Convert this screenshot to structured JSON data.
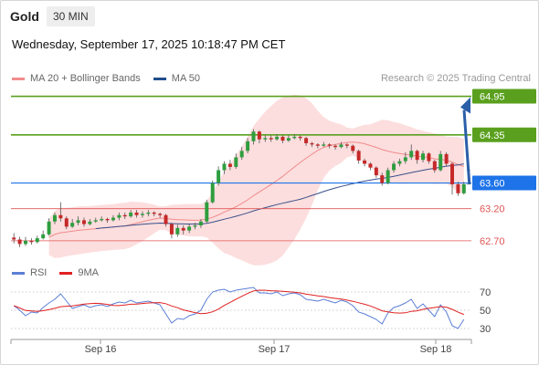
{
  "header": {
    "asset": "Gold",
    "timeframe": "30 MIN"
  },
  "datetime": "Wednesday, September 17, 2025 10:18:47 PM CET",
  "legend": {
    "ma20": {
      "label": "MA 20 + Bollinger Bands",
      "color": "#f28b8b"
    },
    "ma50": {
      "label": "MA 50",
      "color": "#1f4e8c"
    }
  },
  "credit": "Research © 2025 Trading Central",
  "rsi_legend": {
    "rsi": {
      "label": "RSI",
      "color": "#5b7fd6"
    },
    "ma9": {
      "label": "9MA",
      "color": "#e02020"
    }
  },
  "chart_data": {
    "type": "candlestick",
    "levels": [
      {
        "value": 64.95,
        "label": "64.95",
        "kind": "resistance",
        "color": "#5aa01e"
      },
      {
        "value": 64.35,
        "label": "64.35",
        "kind": "resistance",
        "color": "#5aa01e"
      },
      {
        "value": 63.6,
        "label": "63.60",
        "kind": "pivot",
        "color": "#1e73e8"
      },
      {
        "value": 63.2,
        "label": "63.20",
        "kind": "support",
        "color": "#e05555"
      },
      {
        "value": 62.7,
        "label": "62.70",
        "kind": "support",
        "color": "#e05555"
      }
    ],
    "price_range": [
      62.4,
      65.1
    ],
    "x_labels": [
      "Sep 16",
      "Sep 17",
      "Sep 18"
    ],
    "candles": [
      [
        62.75,
        62.72,
        62.82,
        62.66
      ],
      [
        62.72,
        62.65,
        62.76,
        62.6
      ],
      [
        62.65,
        62.7,
        62.76,
        62.62
      ],
      [
        62.7,
        62.68,
        62.74,
        62.64
      ],
      [
        62.68,
        62.74,
        62.78,
        62.66
      ],
      [
        62.74,
        62.8,
        62.86,
        62.72
      ],
      [
        62.8,
        63.0,
        63.05,
        62.78
      ],
      [
        63.0,
        63.1,
        63.14,
        62.96
      ],
      [
        63.1,
        63.05,
        63.3,
        63.0
      ],
      [
        63.05,
        62.92,
        63.08,
        62.88
      ],
      [
        62.92,
        62.98,
        63.04,
        62.9
      ],
      [
        62.98,
        63.02,
        63.08,
        62.94
      ],
      [
        63.02,
        62.96,
        63.06,
        62.92
      ],
      [
        62.96,
        63.0,
        63.04,
        62.94
      ],
      [
        63.0,
        63.02,
        63.06,
        62.98
      ],
      [
        63.02,
        63.04,
        63.08,
        63.0
      ],
      [
        63.04,
        63.02,
        63.06,
        62.98
      ],
      [
        63.02,
        63.06,
        63.1,
        63.0
      ],
      [
        63.06,
        63.1,
        63.14,
        63.02
      ],
      [
        63.1,
        63.08,
        63.14,
        63.04
      ],
      [
        63.08,
        63.14,
        63.18,
        63.06
      ],
      [
        63.14,
        63.1,
        63.18,
        63.06
      ],
      [
        63.1,
        63.12,
        63.16,
        63.06
      ],
      [
        63.12,
        63.14,
        63.18,
        63.08
      ],
      [
        63.14,
        63.12,
        63.16,
        63.08
      ],
      [
        63.12,
        63.1,
        63.14,
        63.06
      ],
      [
        63.1,
        62.96,
        63.12,
        62.92
      ],
      [
        62.96,
        62.8,
        62.98,
        62.74
      ],
      [
        62.8,
        62.9,
        62.95,
        62.76
      ],
      [
        62.9,
        62.86,
        62.94,
        62.8
      ],
      [
        62.86,
        62.92,
        62.96,
        62.82
      ],
      [
        62.92,
        62.94,
        62.98,
        62.88
      ],
      [
        62.94,
        63.0,
        63.04,
        62.9
      ],
      [
        63.0,
        63.3,
        63.34,
        62.98
      ],
      [
        63.3,
        63.6,
        63.64,
        63.28
      ],
      [
        63.6,
        63.8,
        63.86,
        63.56
      ],
      [
        63.8,
        63.9,
        63.94,
        63.74
      ],
      [
        63.9,
        63.85,
        63.96,
        63.8
      ],
      [
        63.85,
        64.0,
        64.06,
        63.82
      ],
      [
        64.0,
        64.1,
        64.16,
        63.96
      ],
      [
        64.1,
        64.25,
        64.3,
        64.06
      ],
      [
        64.25,
        64.4,
        64.44,
        64.2
      ],
      [
        64.4,
        64.28,
        64.42,
        64.22
      ],
      [
        64.28,
        64.3,
        64.34,
        64.24
      ],
      [
        64.3,
        64.28,
        64.34,
        64.24
      ],
      [
        64.28,
        64.32,
        64.36,
        64.26
      ],
      [
        64.32,
        64.26,
        64.34,
        64.22
      ],
      [
        64.26,
        64.3,
        64.34,
        64.24
      ],
      [
        64.3,
        64.32,
        64.36,
        64.28
      ],
      [
        64.32,
        64.3,
        64.34,
        64.26
      ],
      [
        64.3,
        64.22,
        64.32,
        64.18
      ],
      [
        64.22,
        64.2,
        64.24,
        64.16
      ],
      [
        64.2,
        64.18,
        64.22,
        64.14
      ],
      [
        64.18,
        64.2,
        64.24,
        64.16
      ],
      [
        64.2,
        64.18,
        64.22,
        64.14
      ],
      [
        64.18,
        64.16,
        64.2,
        64.12
      ],
      [
        64.16,
        64.2,
        64.24,
        64.14
      ],
      [
        64.2,
        64.18,
        64.22,
        64.14
      ],
      [
        64.18,
        64.1,
        64.2,
        64.06
      ],
      [
        64.1,
        63.95,
        64.12,
        63.9
      ],
      [
        63.95,
        63.9,
        63.98,
        63.86
      ],
      [
        63.9,
        63.84,
        63.92,
        63.8
      ],
      [
        63.84,
        63.72,
        63.86,
        63.68
      ],
      [
        63.72,
        63.6,
        63.76,
        63.56
      ],
      [
        63.6,
        63.8,
        63.84,
        63.58
      ],
      [
        63.8,
        63.9,
        63.94,
        63.76
      ],
      [
        63.9,
        63.94,
        63.98,
        63.86
      ],
      [
        63.94,
        64.0,
        64.08,
        63.9
      ],
      [
        64.0,
        64.1,
        64.2,
        63.96
      ],
      [
        64.1,
        63.96,
        64.12,
        63.9
      ],
      [
        63.96,
        64.06,
        64.1,
        63.92
      ],
      [
        64.06,
        63.94,
        64.08,
        63.9
      ],
      [
        63.94,
        63.8,
        63.96,
        63.76
      ],
      [
        63.8,
        64.05,
        64.1,
        63.78
      ],
      [
        64.05,
        63.9,
        64.08,
        63.86
      ],
      [
        63.9,
        63.58,
        63.92,
        63.42
      ],
      [
        63.58,
        63.44,
        63.62,
        63.4
      ],
      [
        63.44,
        63.58,
        63.62,
        63.42
      ]
    ],
    "ma20_from": 6,
    "ma50_from": 14,
    "rsi": {
      "ticks": [
        70,
        50,
        30
      ],
      "range": [
        20,
        80
      ],
      "values": [
        55,
        50,
        44,
        48,
        47,
        53,
        58,
        62,
        68,
        60,
        52,
        54,
        56,
        53,
        55,
        56,
        54,
        57,
        59,
        58,
        61,
        58,
        59,
        60,
        58,
        56,
        46,
        36,
        41,
        40,
        44,
        46,
        50,
        62,
        70,
        72,
        73,
        70,
        72,
        73,
        74,
        75,
        69,
        69,
        68,
        70,
        66,
        68,
        69,
        67,
        62,
        61,
        60,
        62,
        60,
        58,
        61,
        59,
        55,
        48,
        46,
        43,
        40,
        35,
        47,
        53,
        55,
        58,
        62,
        52,
        57,
        50,
        43,
        56,
        48,
        33,
        30,
        40
      ]
    }
  }
}
